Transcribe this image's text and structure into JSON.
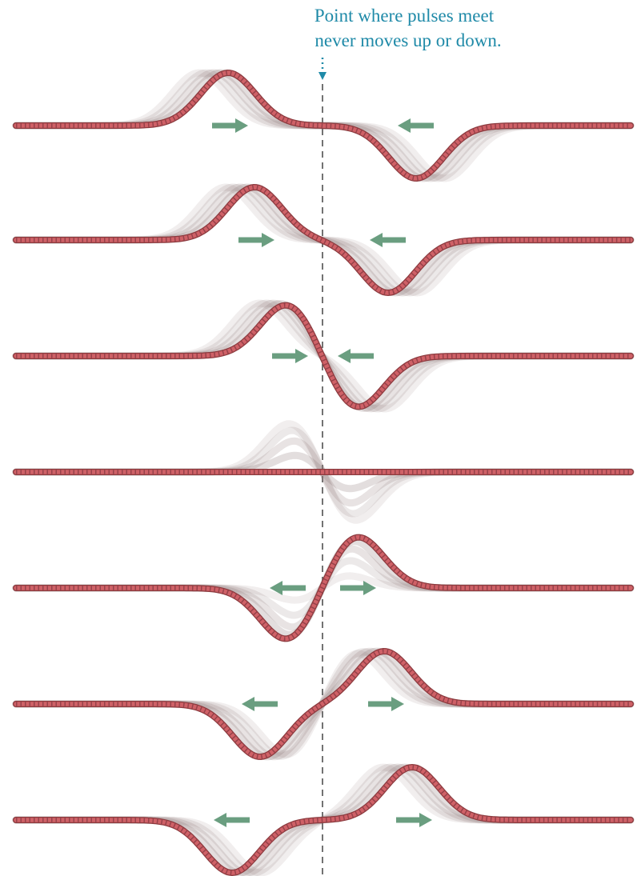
{
  "annotation": {
    "lines": [
      "Point where pulses meet",
      "never moves up or down."
    ]
  }
}
